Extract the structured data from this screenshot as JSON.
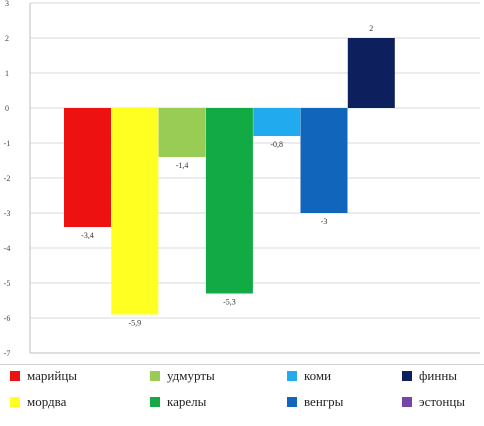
{
  "chart_data": {
    "type": "bar",
    "title": "",
    "xlabel": "",
    "ylabel": "",
    "ylim": [
      -7,
      3
    ],
    "yticks": [
      3,
      2,
      1,
      0,
      -1,
      -2,
      -3,
      -4,
      -5,
      -6,
      -7
    ],
    "grid": true,
    "legend_position": "bottom",
    "series": [
      {
        "name": "марийцы",
        "value": -3.4,
        "label": "-3,4",
        "color": "#ee1111"
      },
      {
        "name": "мордва",
        "value": -5.9,
        "label": "-5,9",
        "color": "#ffff22"
      },
      {
        "name": "удмурты",
        "value": -1.4,
        "label": "-1,4",
        "color": "#99cc55"
      },
      {
        "name": "карелы",
        "value": -5.3,
        "label": "-5,3",
        "color": "#11aa44"
      },
      {
        "name": "коми",
        "value": -0.8,
        "label": "-0,8",
        "color": "#22aaee"
      },
      {
        "name": "венгры",
        "value": -3,
        "label": "-3",
        "color": "#1166bb"
      },
      {
        "name": "финны",
        "value": 2,
        "label": "2",
        "color": "#0d1f5c"
      },
      {
        "name": "эстонцы",
        "value": null,
        "label": "",
        "color": "#7744aa"
      }
    ]
  }
}
